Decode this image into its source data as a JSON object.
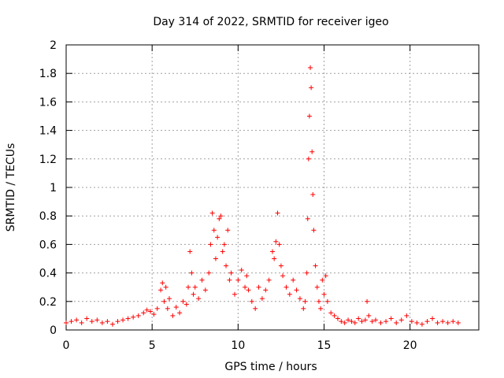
{
  "chart_data": {
    "type": "scatter",
    "title": "Day 314 of 2022, SRMTID for receiver igeo",
    "xlabel": "GPS time / hours",
    "ylabel": "SRMTID / TECUs",
    "xlim": [
      0,
      24
    ],
    "ylim": [
      0,
      2
    ],
    "xticks": [
      0,
      5,
      10,
      15,
      20
    ],
    "xtick_labels": [
      "0",
      "5",
      "10",
      "15",
      "20"
    ],
    "yticks": [
      0,
      0.2,
      0.4,
      0.6,
      0.8,
      1,
      1.2,
      1.4,
      1.6,
      1.8,
      2
    ],
    "ytick_labels": [
      "0",
      "0.2",
      "0.4",
      "0.6",
      "0.8",
      "1",
      "1.2",
      "1.4",
      "1.6",
      "1.8",
      "2"
    ],
    "grid": true,
    "marker": "+",
    "marker_color": "#ff0000",
    "series": [
      {
        "name": "SRMTID",
        "x": [
          0.0,
          0.3,
          0.6,
          0.9,
          1.2,
          1.5,
          1.8,
          2.1,
          2.4,
          2.7,
          3.0,
          3.3,
          3.6,
          3.9,
          4.2,
          4.5,
          4.7,
          4.9,
          5.1,
          5.3,
          5.5,
          5.6,
          5.7,
          5.8,
          5.9,
          6.0,
          6.2,
          6.4,
          6.6,
          6.8,
          7.0,
          7.1,
          7.2,
          7.3,
          7.4,
          7.5,
          7.7,
          7.9,
          8.1,
          8.3,
          8.4,
          8.5,
          8.6,
          8.7,
          8.8,
          8.9,
          9.0,
          9.1,
          9.2,
          9.3,
          9.4,
          9.5,
          9.6,
          9.8,
          10.0,
          10.2,
          10.4,
          10.5,
          10.6,
          10.8,
          11.0,
          11.2,
          11.4,
          11.6,
          11.8,
          12.0,
          12.1,
          12.2,
          12.3,
          12.4,
          12.5,
          12.6,
          12.8,
          13.0,
          13.2,
          13.4,
          13.6,
          13.8,
          13.9,
          14.0,
          14.05,
          14.1,
          14.15,
          14.2,
          14.25,
          14.3,
          14.35,
          14.4,
          14.5,
          14.6,
          14.7,
          14.8,
          14.9,
          15.0,
          15.1,
          15.2,
          15.4,
          15.6,
          15.8,
          16.0,
          16.2,
          16.4,
          16.6,
          16.8,
          17.0,
          17.2,
          17.4,
          17.5,
          17.6,
          17.8,
          18.0,
          18.3,
          18.6,
          18.9,
          19.2,
          19.5,
          19.8,
          20.1,
          20.4,
          20.7,
          21.0,
          21.3,
          21.6,
          21.9,
          22.2,
          22.5,
          22.8
        ],
        "values": [
          0.05,
          0.06,
          0.07,
          0.05,
          0.08,
          0.06,
          0.07,
          0.05,
          0.06,
          0.04,
          0.06,
          0.07,
          0.08,
          0.09,
          0.1,
          0.12,
          0.14,
          0.13,
          0.11,
          0.15,
          0.28,
          0.33,
          0.2,
          0.3,
          0.15,
          0.22,
          0.1,
          0.16,
          0.12,
          0.2,
          0.18,
          0.3,
          0.55,
          0.4,
          0.25,
          0.3,
          0.22,
          0.35,
          0.28,
          0.4,
          0.6,
          0.82,
          0.7,
          0.5,
          0.65,
          0.78,
          0.8,
          0.55,
          0.6,
          0.45,
          0.7,
          0.35,
          0.4,
          0.25,
          0.35,
          0.42,
          0.3,
          0.38,
          0.28,
          0.2,
          0.15,
          0.3,
          0.22,
          0.28,
          0.35,
          0.55,
          0.5,
          0.62,
          0.82,
          0.6,
          0.45,
          0.38,
          0.3,
          0.25,
          0.35,
          0.28,
          0.22,
          0.15,
          0.2,
          0.4,
          0.78,
          1.2,
          1.5,
          1.84,
          1.7,
          1.25,
          0.95,
          0.7,
          0.45,
          0.3,
          0.2,
          0.15,
          0.35,
          0.25,
          0.38,
          0.2,
          0.12,
          0.1,
          0.08,
          0.06,
          0.05,
          0.07,
          0.06,
          0.05,
          0.08,
          0.06,
          0.07,
          0.2,
          0.1,
          0.06,
          0.07,
          0.05,
          0.06,
          0.08,
          0.05,
          0.07,
          0.1,
          0.06,
          0.05,
          0.04,
          0.06,
          0.08,
          0.05,
          0.06,
          0.05,
          0.06,
          0.05
        ]
      }
    ]
  }
}
